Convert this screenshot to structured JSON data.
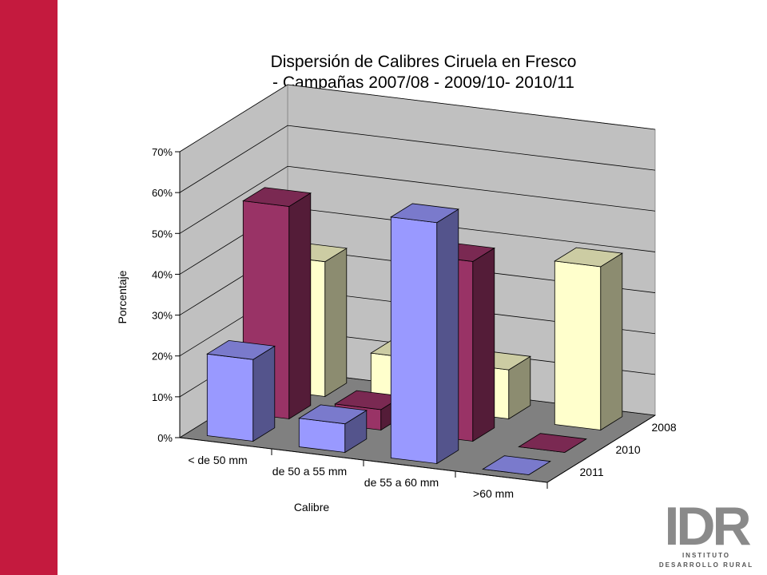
{
  "chart_data": {
    "type": "bar3d",
    "title": [
      "Dispersión de Calibres Ciruela en Fresco",
      "- Campañas 2007/08 - 2009/10- 2010/11"
    ],
    "categories": [
      "< de 50 mm",
      "de 50 a 55 mm",
      "de 55 a 60 mm",
      ">60 mm"
    ],
    "series": [
      {
        "name": "2008",
        "color": "#ffffcc",
        "values": [
          33,
          12,
          12,
          40
        ]
      },
      {
        "name": "2010",
        "color": "#993366",
        "values": [
          52,
          5,
          44,
          0
        ]
      },
      {
        "name": "2011",
        "color": "#9999ff",
        "values": [
          20,
          7,
          59,
          0
        ]
      }
    ],
    "ylim": [
      0,
      70
    ],
    "yticks": [
      {
        "value": 0,
        "label": "0%"
      },
      {
        "value": 10,
        "label": "10%"
      },
      {
        "value": 20,
        "label": "20%"
      },
      {
        "value": 30,
        "label": "30%"
      },
      {
        "value": 40,
        "label": "40%"
      },
      {
        "value": 50,
        "label": "50%"
      },
      {
        "value": 60,
        "label": "60%"
      },
      {
        "value": 70,
        "label": "70%"
      }
    ],
    "ylabel": "Porcentaje",
    "xlabel": "Calibre",
    "grid": true
  },
  "logo": {
    "letters": "IDR",
    "line1": "INSTITUTO",
    "line2": "DESARROLLO RURAL"
  }
}
